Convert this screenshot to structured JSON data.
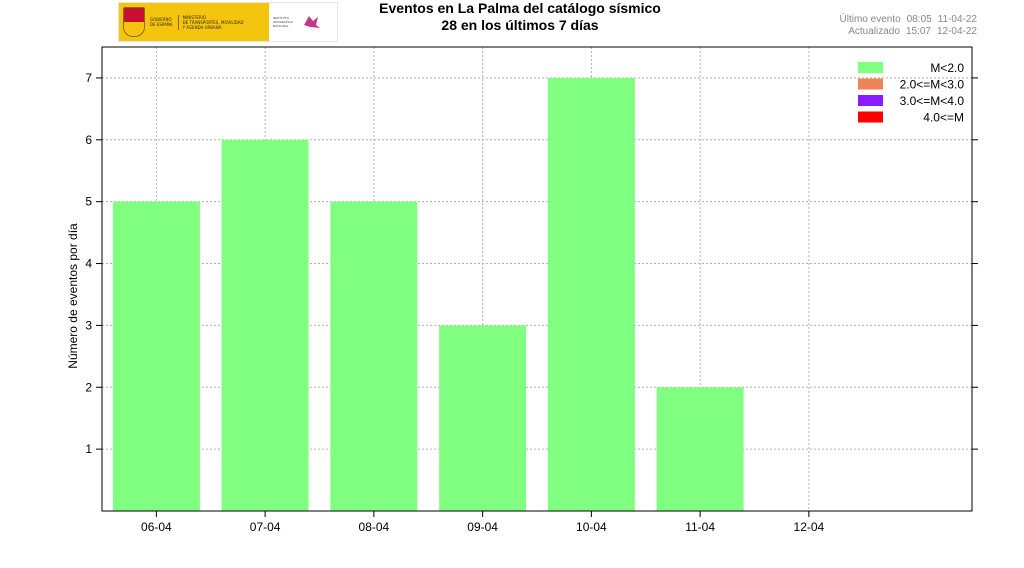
{
  "header": {
    "title_line1": "Eventos en La Palma del catálogo sísmico",
    "title_line2": "28 en los últimos 7 días"
  },
  "status": {
    "last_event_label": "Último evento",
    "last_event_time": "08:05",
    "last_event_date": "11-04-22",
    "updated_label": "Actualizado",
    "updated_time": "15:07",
    "updated_date": "12-04-22"
  },
  "logo": {
    "gov_text": "GOBIERNO\nDE ESPAÑA",
    "ministry_text": "MINISTERIO\nDE TRANSPORTES, MOVILIDAD\nY AGENDA URBANA",
    "ign_text": "INSTITUTO\nGEOGRÁFICO\nNACIONAL",
    "ign_color": "#c03a8c",
    "gov_color": "#f4c40f"
  },
  "chart_data": {
    "type": "bar",
    "ylabel": "Número de eventos por día",
    "xlabel": "",
    "categories": [
      "06-04",
      "07-04",
      "08-04",
      "09-04",
      "10-04",
      "11-04",
      "12-04"
    ],
    "series": [
      {
        "name": "M<2.0",
        "color": "#80ff80",
        "values": [
          5,
          6,
          5,
          3,
          7,
          2,
          0
        ]
      },
      {
        "name": "2.0<=M<3.0",
        "color": "#ee8355",
        "values": [
          0,
          0,
          0,
          0,
          0,
          0,
          0
        ]
      },
      {
        "name": "3.0<=M<4.0",
        "color": "#8a1bff",
        "values": [
          0,
          0,
          0,
          0,
          0,
          0,
          0
        ]
      },
      {
        "name": "4.0<=M",
        "color": "#ff0000",
        "values": [
          0,
          0,
          0,
          0,
          0,
          0,
          0
        ]
      }
    ],
    "y_ticks": [
      1,
      2,
      3,
      4,
      5,
      6,
      7
    ],
    "ylim": [
      0,
      7.5
    ],
    "grid": true,
    "legend_position": "top-right"
  }
}
